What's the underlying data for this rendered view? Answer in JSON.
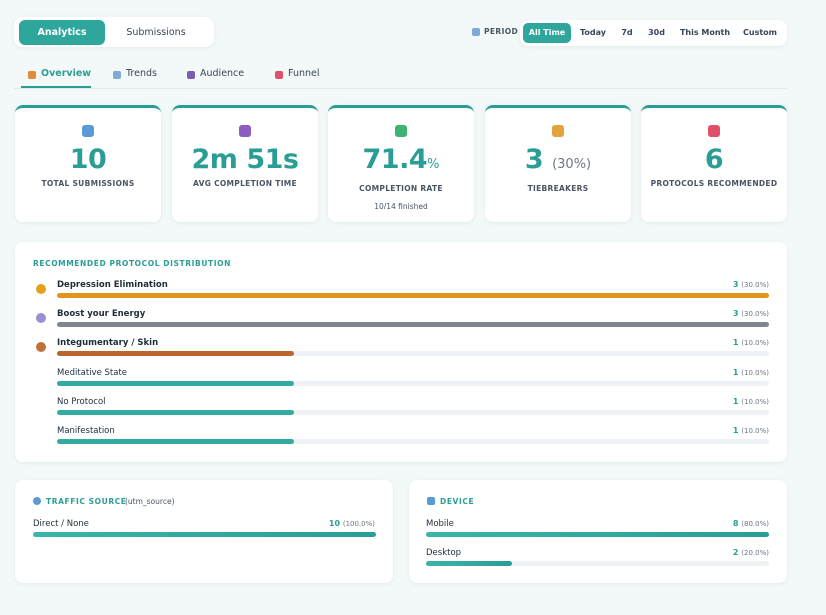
{
  "top_tabs": {
    "items": [
      "Analytics",
      "Submissions"
    ],
    "active": 0
  },
  "period": {
    "label": "PERIOD",
    "options": [
      "All Time",
      "Today",
      "7d",
      "30d",
      "This Month",
      "Custom"
    ],
    "active": 0
  },
  "nav_tabs": {
    "items": [
      "Overview",
      "Trends",
      "Audience",
      "Funnel"
    ],
    "active": 0
  },
  "stats": [
    {
      "value": "10",
      "label": "TOTAL SUBMISSIONS"
    },
    {
      "value": "2m 51s",
      "label": "AVG COMPLETION TIME"
    },
    {
      "value": "71.4",
      "unit": "%",
      "label": "COMPLETION RATE",
      "note": "10/14 finished"
    },
    {
      "value": "3",
      "extra": "(30%)",
      "label": "TIEBREAKERS"
    },
    {
      "value": "6",
      "label": "PROTOCOLS RECOMMENDED"
    }
  ],
  "distribution": {
    "title": "RECOMMENDED PROTOCOL DISTRIBUTION",
    "rows": [
      {
        "name": "Depression Elimination",
        "count": 3,
        "pct": "(30.0%)",
        "color": "#e3941a"
      },
      {
        "name": "Boost your Energy",
        "count": 3,
        "pct": "(30.0%)",
        "color": "#80868f"
      },
      {
        "name": "Integumentary / Skin",
        "count": 1,
        "pct": "(10.0%)",
        "color": "#b8662e"
      },
      {
        "name": "Meditative State",
        "count": 1,
        "pct": "(10.0%)",
        "color": "#34aba0"
      },
      {
        "name": "No Protocol",
        "count": 1,
        "pct": "(10.0%)",
        "color": "#34aba0"
      },
      {
        "name": "Manifestation",
        "count": 1,
        "pct": "(10.0%)",
        "color": "#34aba0"
      }
    ]
  },
  "traffic": {
    "title": "TRAFFIC SOURCE",
    "subtitle": "(utm_source)",
    "rows": [
      {
        "name": "Direct / None",
        "count": 10,
        "pct": "(100.0%)"
      }
    ]
  },
  "device": {
    "title": "DEVICE",
    "rows": [
      {
        "name": "Mobile",
        "count": 8,
        "pct": "(80.0%)"
      },
      {
        "name": "Desktop",
        "count": 2,
        "pct": "(20.0%)"
      }
    ]
  }
}
